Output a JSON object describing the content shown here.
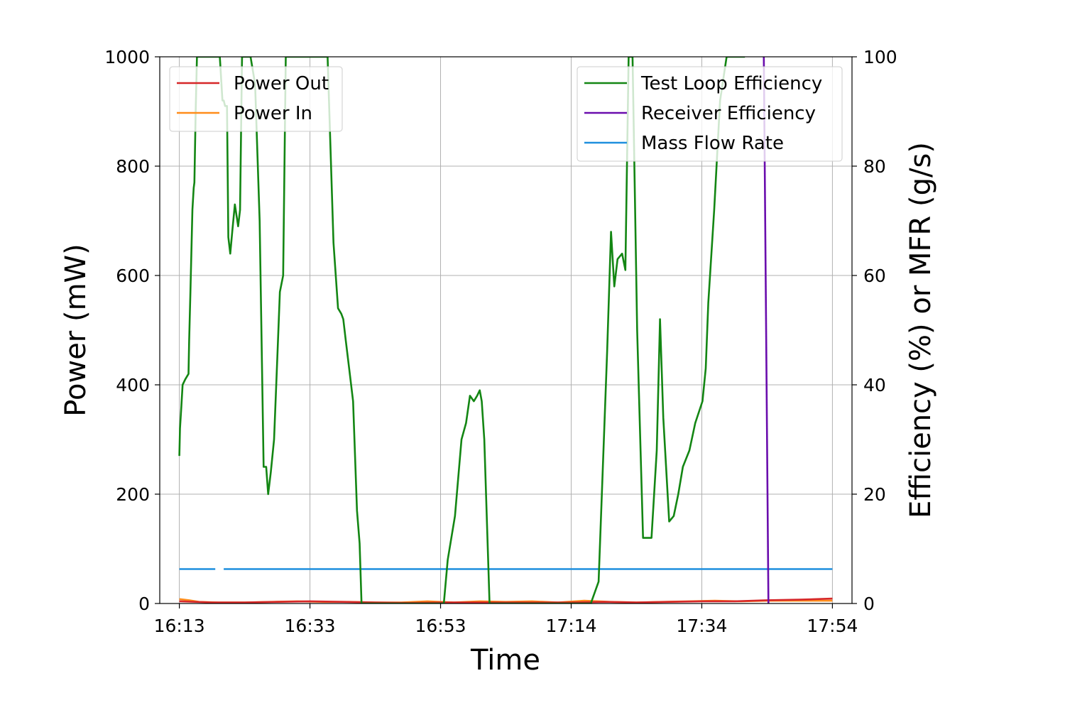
{
  "chart_data": {
    "type": "line",
    "xlabel": "Time",
    "ylabel_left": "Power (mW)",
    "ylabel_right": "Efficiency (%) or MFR (g/s)",
    "x_unit": "minutes after 16:13",
    "xlim": [
      -3.0,
      103.0
    ],
    "ylim_left": [
      0,
      1000
    ],
    "ylim_right": [
      0,
      100
    ],
    "x_ticks": [
      {
        "x": 0,
        "label": "16:13"
      },
      {
        "x": 20,
        "label": "16:33"
      },
      {
        "x": 40,
        "label": "16:53"
      },
      {
        "x": 60,
        "label": "17:14"
      },
      {
        "x": 80,
        "label": "17:34"
      },
      {
        "x": 100,
        "label": "17:54"
      }
    ],
    "y_left_ticks": [
      0,
      200,
      400,
      600,
      800,
      1000
    ],
    "y_right_ticks": [
      0,
      20,
      40,
      60,
      80,
      100
    ],
    "grid": true,
    "legend_left": {
      "placement": "top-left",
      "entries": [
        "Power Out",
        "Power In"
      ]
    },
    "legend_right": {
      "placement": "top-right",
      "entries": [
        "Test Loop Efficiency",
        "Receiver Efficiency",
        "Mass Flow Rate"
      ]
    },
    "series": [
      {
        "name": "Power Out",
        "axis": "left",
        "color": "#d62728",
        "x": [
          0,
          5,
          10,
          15,
          20,
          25,
          30,
          35,
          40,
          45,
          50,
          55,
          60,
          65,
          70,
          75,
          80,
          85,
          90,
          95,
          100
        ],
        "y": [
          4,
          2,
          2,
          3,
          4,
          3,
          2,
          1,
          2,
          2,
          2,
          2,
          2,
          3,
          2,
          3,
          4,
          4,
          6,
          7,
          9
        ]
      },
      {
        "name": "Power In",
        "axis": "left",
        "color": "#ff8c1a",
        "x": [
          0,
          1.5,
          3,
          6,
          10,
          14,
          18,
          22,
          26,
          30,
          34,
          38,
          42,
          46,
          50,
          54,
          58,
          62,
          66,
          70,
          74,
          78,
          82,
          86,
          90,
          94,
          100
        ],
        "y": [
          8,
          6,
          3,
          2,
          2,
          3,
          4,
          3,
          3,
          2,
          2,
          4,
          2,
          4,
          3,
          4,
          2,
          5,
          3,
          2,
          3,
          4,
          5,
          4,
          5,
          5,
          5
        ]
      },
      {
        "name": "Test Loop Efficiency",
        "axis": "right",
        "color": "#138613",
        "x": [
          0,
          0.1,
          0.3,
          0.5,
          0.9,
          1.4,
          1.5,
          1.7,
          2,
          2.2,
          2.3,
          2.5,
          2.7,
          2.9,
          3.3,
          3.5,
          4,
          4.7,
          5.2,
          5.8,
          6.2,
          6.6,
          6.8,
          7,
          7.3,
          7.5,
          7.8,
          8.1,
          8.5,
          9,
          9.3,
          9.6,
          10.1,
          10.9,
          11.6,
          12.3,
          12.9,
          13.3,
          13.6,
          14,
          14.5,
          15,
          15.4,
          15.9,
          16.3,
          17,
          17.5,
          18,
          18.8,
          19.5,
          20.2,
          21.4,
          22.7,
          23.6,
          24.3,
          24.8,
          25.1,
          25.5,
          26.1,
          26.6,
          27.2,
          27.6,
          27.9,
          35.2,
          40.5,
          41.1,
          42.2,
          43.2,
          43.9,
          44.5,
          45.1,
          45.6,
          46,
          46.3,
          46.7,
          47.5,
          47.8,
          48.6,
          56.5,
          63,
          64.2,
          65.5,
          66.1,
          66.6,
          67.1,
          67.8,
          68.3,
          68.8,
          69.4,
          70.1,
          71,
          72.3,
          73.1,
          73.6,
          74.1,
          75,
          75.7,
          76.4,
          77.1,
          78.1,
          79,
          80.1,
          80.6,
          81,
          81.9,
          82.8,
          83.8,
          84.5,
          85.1,
          85.6,
          86.3,
          86.6
        ],
        "y": [
          27,
          32,
          36,
          40,
          41,
          42,
          48,
          57,
          72,
          76,
          77,
          90,
          100,
          100,
          100,
          100,
          100,
          100,
          100,
          100,
          100,
          92,
          92,
          91,
          91,
          67,
          64,
          68,
          73,
          69,
          72,
          100,
          100,
          100,
          95,
          70,
          25,
          25,
          20,
          24,
          30,
          45,
          57,
          60,
          100,
          100,
          100,
          100,
          100,
          100,
          100,
          100,
          100,
          66,
          54,
          53,
          52,
          48,
          42,
          37,
          17,
          11,
          0,
          0,
          0,
          8,
          16,
          30,
          33,
          38,
          37,
          38,
          39,
          37,
          30,
          0,
          0,
          0,
          0,
          0,
          4,
          46,
          68,
          58,
          63,
          64,
          61,
          100,
          100,
          50,
          12,
          12,
          28,
          52,
          34,
          15,
          16,
          20,
          25,
          28,
          33,
          37,
          43,
          55,
          72,
          92,
          100,
          100,
          100,
          100,
          100,
          100
        ],
        "breaks_at_top": true
      },
      {
        "name": "Receiver Efficiency",
        "axis": "right",
        "color": "#6a0dad",
        "x": [
          89.5,
          90.2
        ],
        "y": [
          100,
          0
        ]
      },
      {
        "name": "Mass Flow Rate",
        "axis": "right",
        "color": "#1f8fde",
        "segments": [
          {
            "x": [
              0,
              5.5
            ],
            "y": [
              6.3,
              6.3
            ]
          },
          {
            "x": [
              6.8,
              100
            ],
            "y": [
              6.3,
              6.3
            ]
          }
        ]
      }
    ]
  }
}
